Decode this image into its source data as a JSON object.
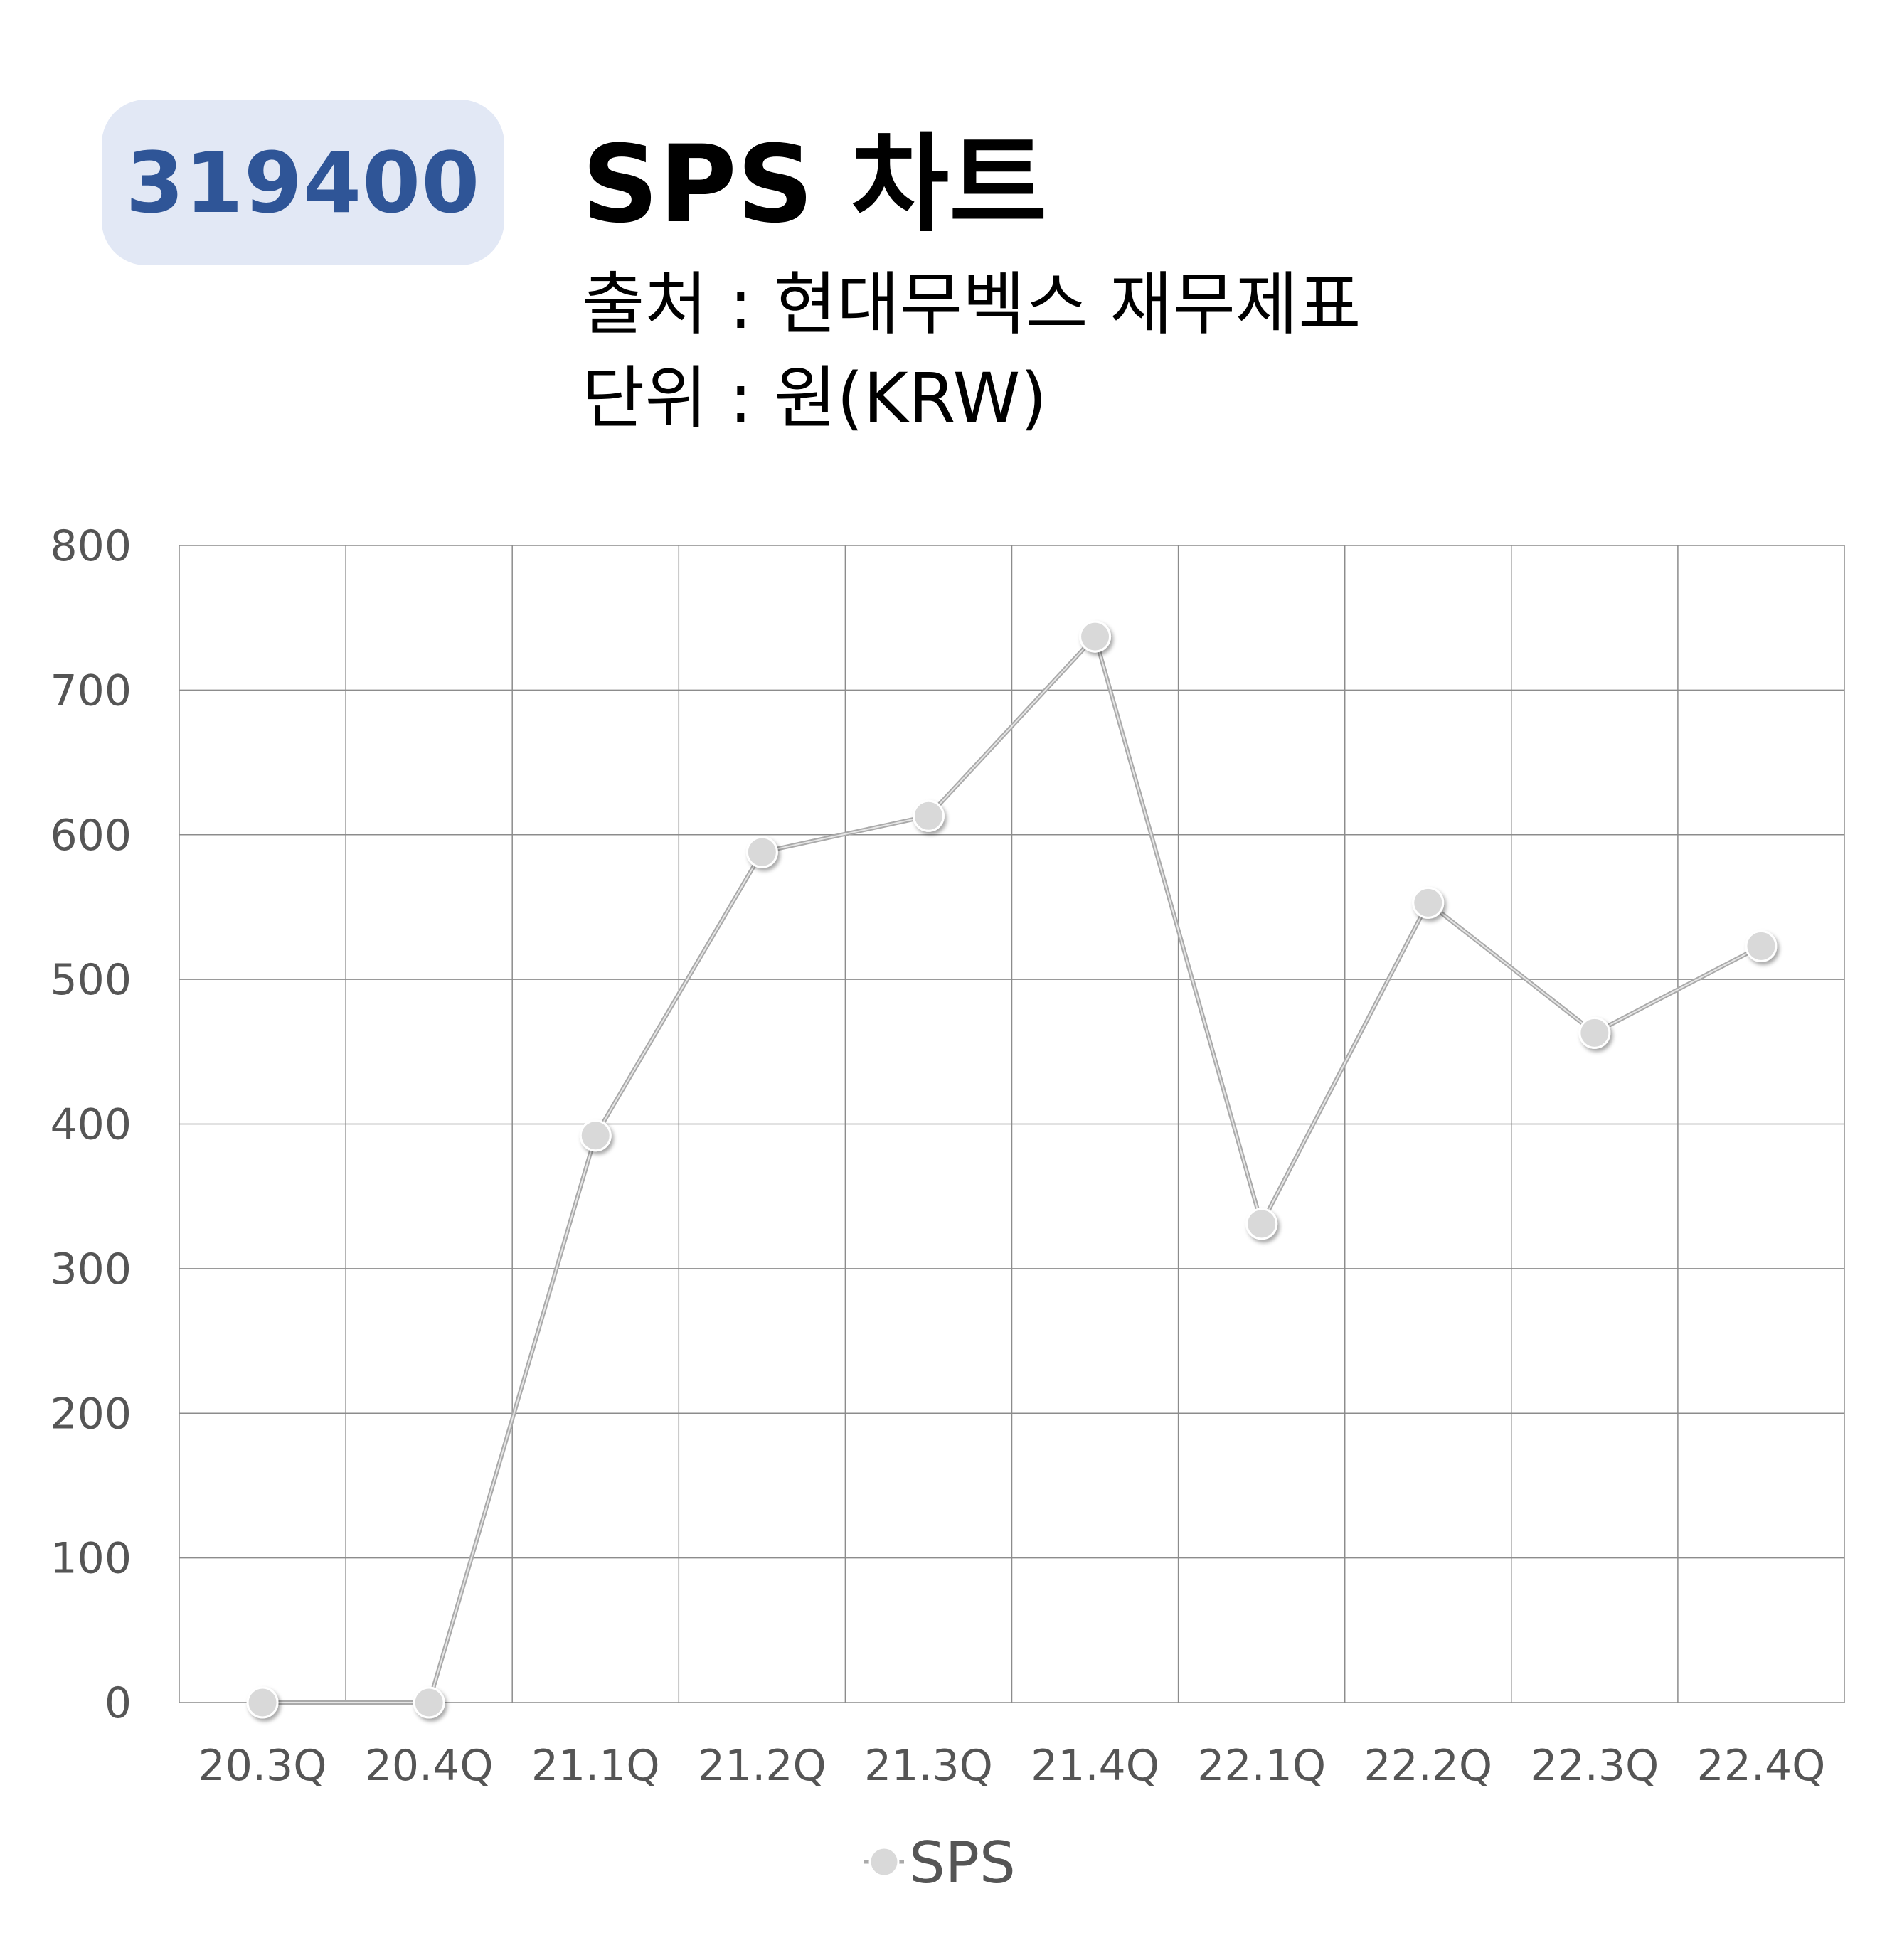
{
  "header": {
    "code": "319400",
    "title": "SPS 차트",
    "source": "출처 : 현대무벡스 재무제표",
    "unit": "단위 : 원(KRW)"
  },
  "colors": {
    "badge_bg": "#e2e8f5",
    "badge_text": "#2f5597",
    "series_line": "#aaaaaa",
    "marker_fill": "#d9d9d9",
    "grid": "#8c8c8c"
  },
  "chart_data": {
    "type": "line",
    "categories": [
      "20.3Q",
      "20.4Q",
      "21.1Q",
      "21.2Q",
      "21.3Q",
      "21.4Q",
      "22.1Q",
      "22.2Q",
      "22.3Q",
      "22.4Q"
    ],
    "series": [
      {
        "name": "SPS",
        "values": [
          0,
          0,
          392,
          588,
          613,
          737,
          331,
          553,
          463,
          523
        ]
      }
    ],
    "ylim": [
      0,
      800
    ],
    "yticks": [
      0,
      100,
      200,
      300,
      400,
      500,
      600,
      700,
      800
    ],
    "grid": true,
    "legend": "bottom-center"
  }
}
